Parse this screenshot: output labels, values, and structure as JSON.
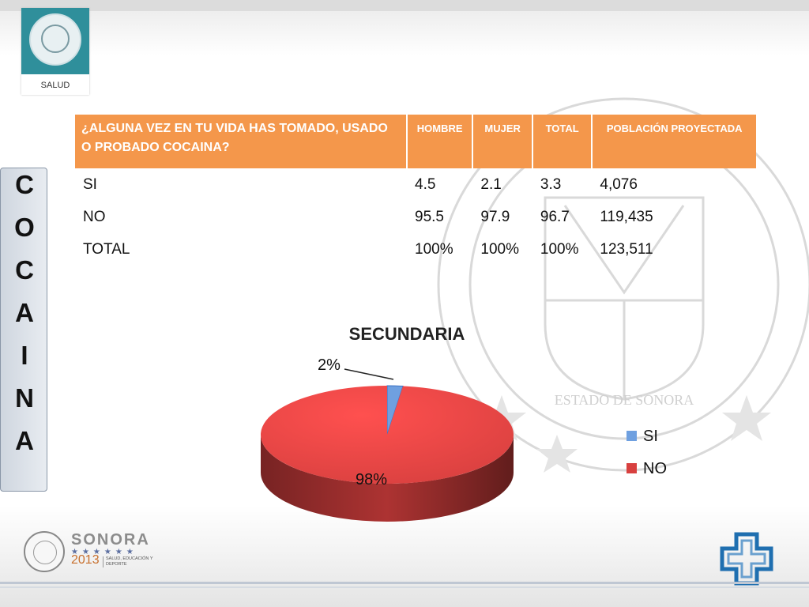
{
  "logo": {
    "label": "SALUD"
  },
  "side_label": {
    "letters": [
      "C",
      "O",
      "C",
      "A",
      "I",
      "N",
      "A"
    ]
  },
  "watermark": {
    "text": "ESTADO DE SONORA"
  },
  "table": {
    "header": [
      "¿ALGUNA VEZ EN TU VIDA HAS TOMADO, USADO O PROBADO COCAINA?",
      "HOMBRE",
      "MUJER",
      "TOTAL",
      "POBLACIÓN PROYECTADA"
    ],
    "rows": [
      [
        "SI",
        "4.5",
        "2.1",
        "3.3",
        "4,076"
      ],
      [
        "NO",
        "95.5",
        "97.9",
        "96.7",
        "119,435"
      ],
      [
        "TOTAL",
        "100%",
        "100%",
        "100%",
        "123,511"
      ]
    ]
  },
  "chart_data": {
    "type": "pie",
    "title": "SECUNDARIA",
    "categories": [
      "SI",
      "NO"
    ],
    "values": [
      2,
      98
    ],
    "data_labels": [
      "2%",
      "98%"
    ],
    "legend_position": "right",
    "colors": [
      "#6fa0e0",
      "#d8403f"
    ]
  },
  "footer": {
    "brand": "SONORA",
    "stars": "★★★★★★",
    "year": "2013",
    "dept": "SALUD, EDUCACIÓN Y DEPORTE"
  },
  "colors": {
    "header_bg": "#f4974b",
    "accent_blue": "#1f6fb0"
  }
}
